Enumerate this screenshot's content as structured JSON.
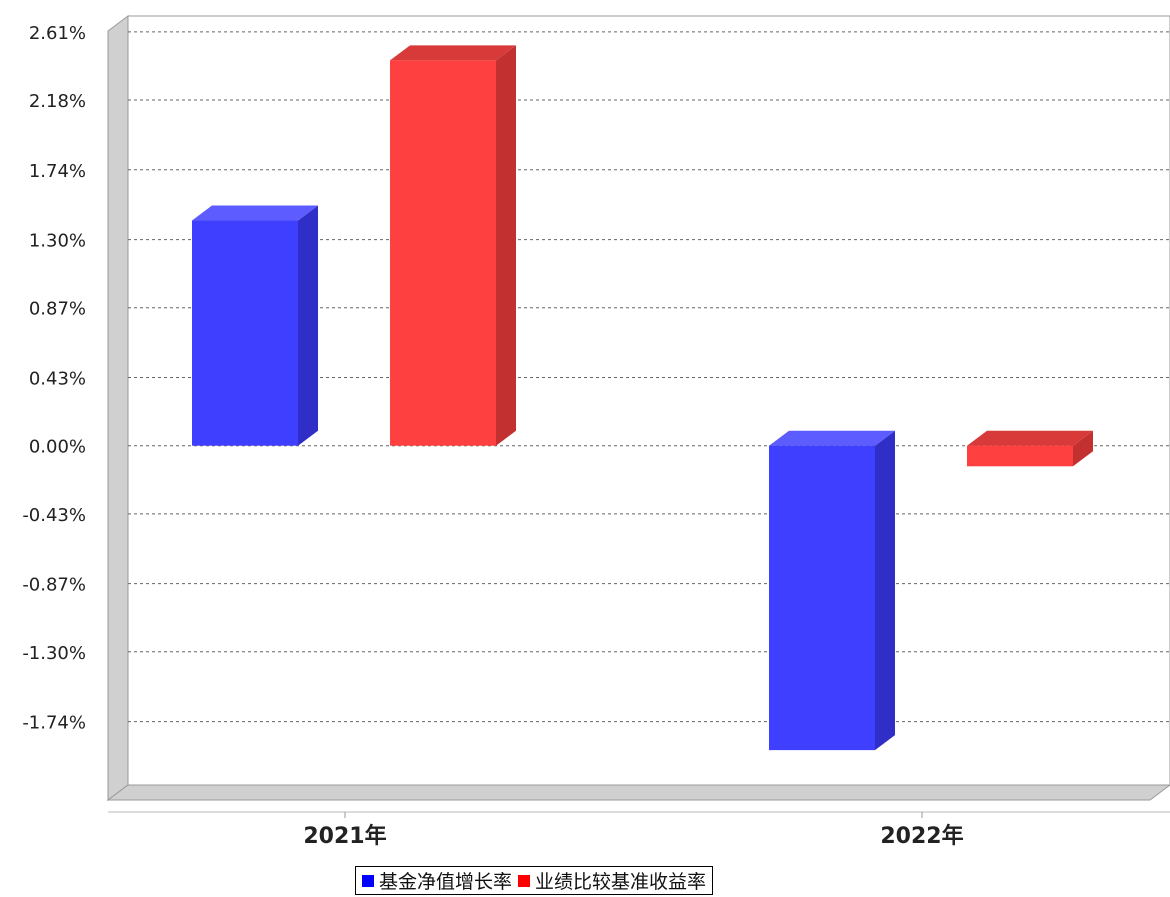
{
  "chart_data": {
    "type": "bar",
    "categories": [
      "2021年",
      "2022年"
    ],
    "series": [
      {
        "name": "基金净值增长率",
        "values": [
          1.42,
          -1.92
        ],
        "color": "#3f3fff"
      },
      {
        "name": "业绩比较基准收益率",
        "values": [
          2.43,
          -0.13
        ],
        "color": "#ff4040"
      }
    ],
    "y_ticks": [
      "2.61%",
      "2.18%",
      "1.74%",
      "1.30%",
      "0.87%",
      "0.43%",
      "0.00%",
      "-0.43%",
      "-0.87%",
      "-1.30%",
      "-1.74%"
    ],
    "y_tick_values": [
      2.61,
      2.18,
      1.74,
      1.3,
      0.87,
      0.43,
      0.0,
      -0.43,
      -0.87,
      -1.3,
      -1.74
    ],
    "ylim": [
      -2.14,
      2.71
    ],
    "grid": true,
    "legend_position": "bottom-center",
    "style": "3d-bar"
  }
}
